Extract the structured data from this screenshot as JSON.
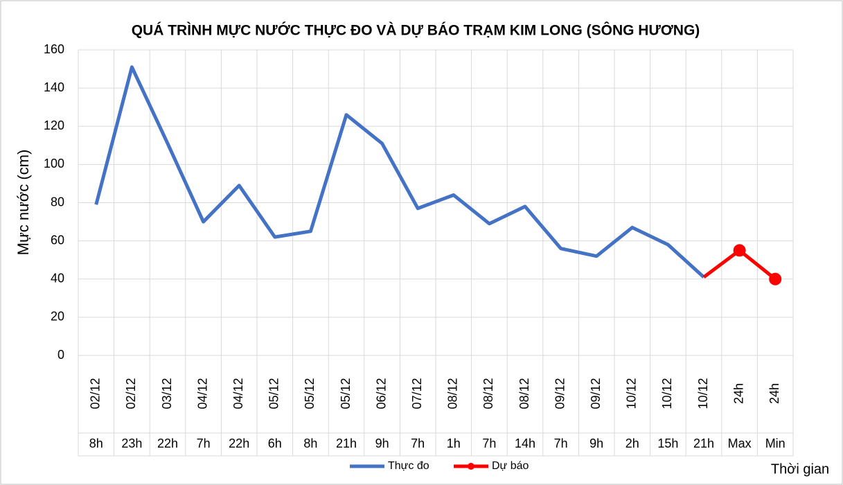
{
  "chart_data": {
    "type": "line",
    "title": "QUÁ TRÌNH MỰC NƯỚC THỰC ĐO VÀ DỰ BÁO TRẠM KIM LONG (SÔNG HƯƠNG)",
    "y_label": "Mực nước (cm)",
    "x_label": "Thời gian",
    "date_labels": [
      "02/12",
      "02/12",
      "03/12",
      "04/12",
      "04/12",
      "05/12",
      "05/12",
      "05/12",
      "06/12",
      "07/12",
      "08/12",
      "08/12",
      "08/12",
      "09/12",
      "09/12",
      "10/12",
      "10/12",
      "10/12",
      "24h",
      "24h"
    ],
    "categories": [
      "8h",
      "23h",
      "22h",
      "7h",
      "22h",
      "6h",
      "8h",
      "21h",
      "9h",
      "7h",
      "1h",
      "7h",
      "14h",
      "7h",
      "9h",
      "2h",
      "15h",
      "21h",
      "Max",
      "Min"
    ],
    "series": [
      {
        "name": "Thực đo",
        "color": "#4472c4",
        "values": [
          79,
          151,
          111,
          70,
          89,
          62,
          65,
          126,
          111,
          77,
          84,
          69,
          78,
          56,
          52,
          67,
          58,
          41,
          null,
          null
        ]
      },
      {
        "name": "Dự báo",
        "color": "#ff0000",
        "values": [
          null,
          null,
          null,
          null,
          null,
          null,
          null,
          null,
          null,
          null,
          null,
          null,
          null,
          null,
          null,
          null,
          null,
          41,
          55,
          40
        ]
      }
    ],
    "ylim": [
      0,
      160
    ],
    "yticks": [
      0,
      20,
      40,
      60,
      80,
      100,
      120,
      140,
      160
    ],
    "grid": true,
    "legend": "bottom"
  }
}
